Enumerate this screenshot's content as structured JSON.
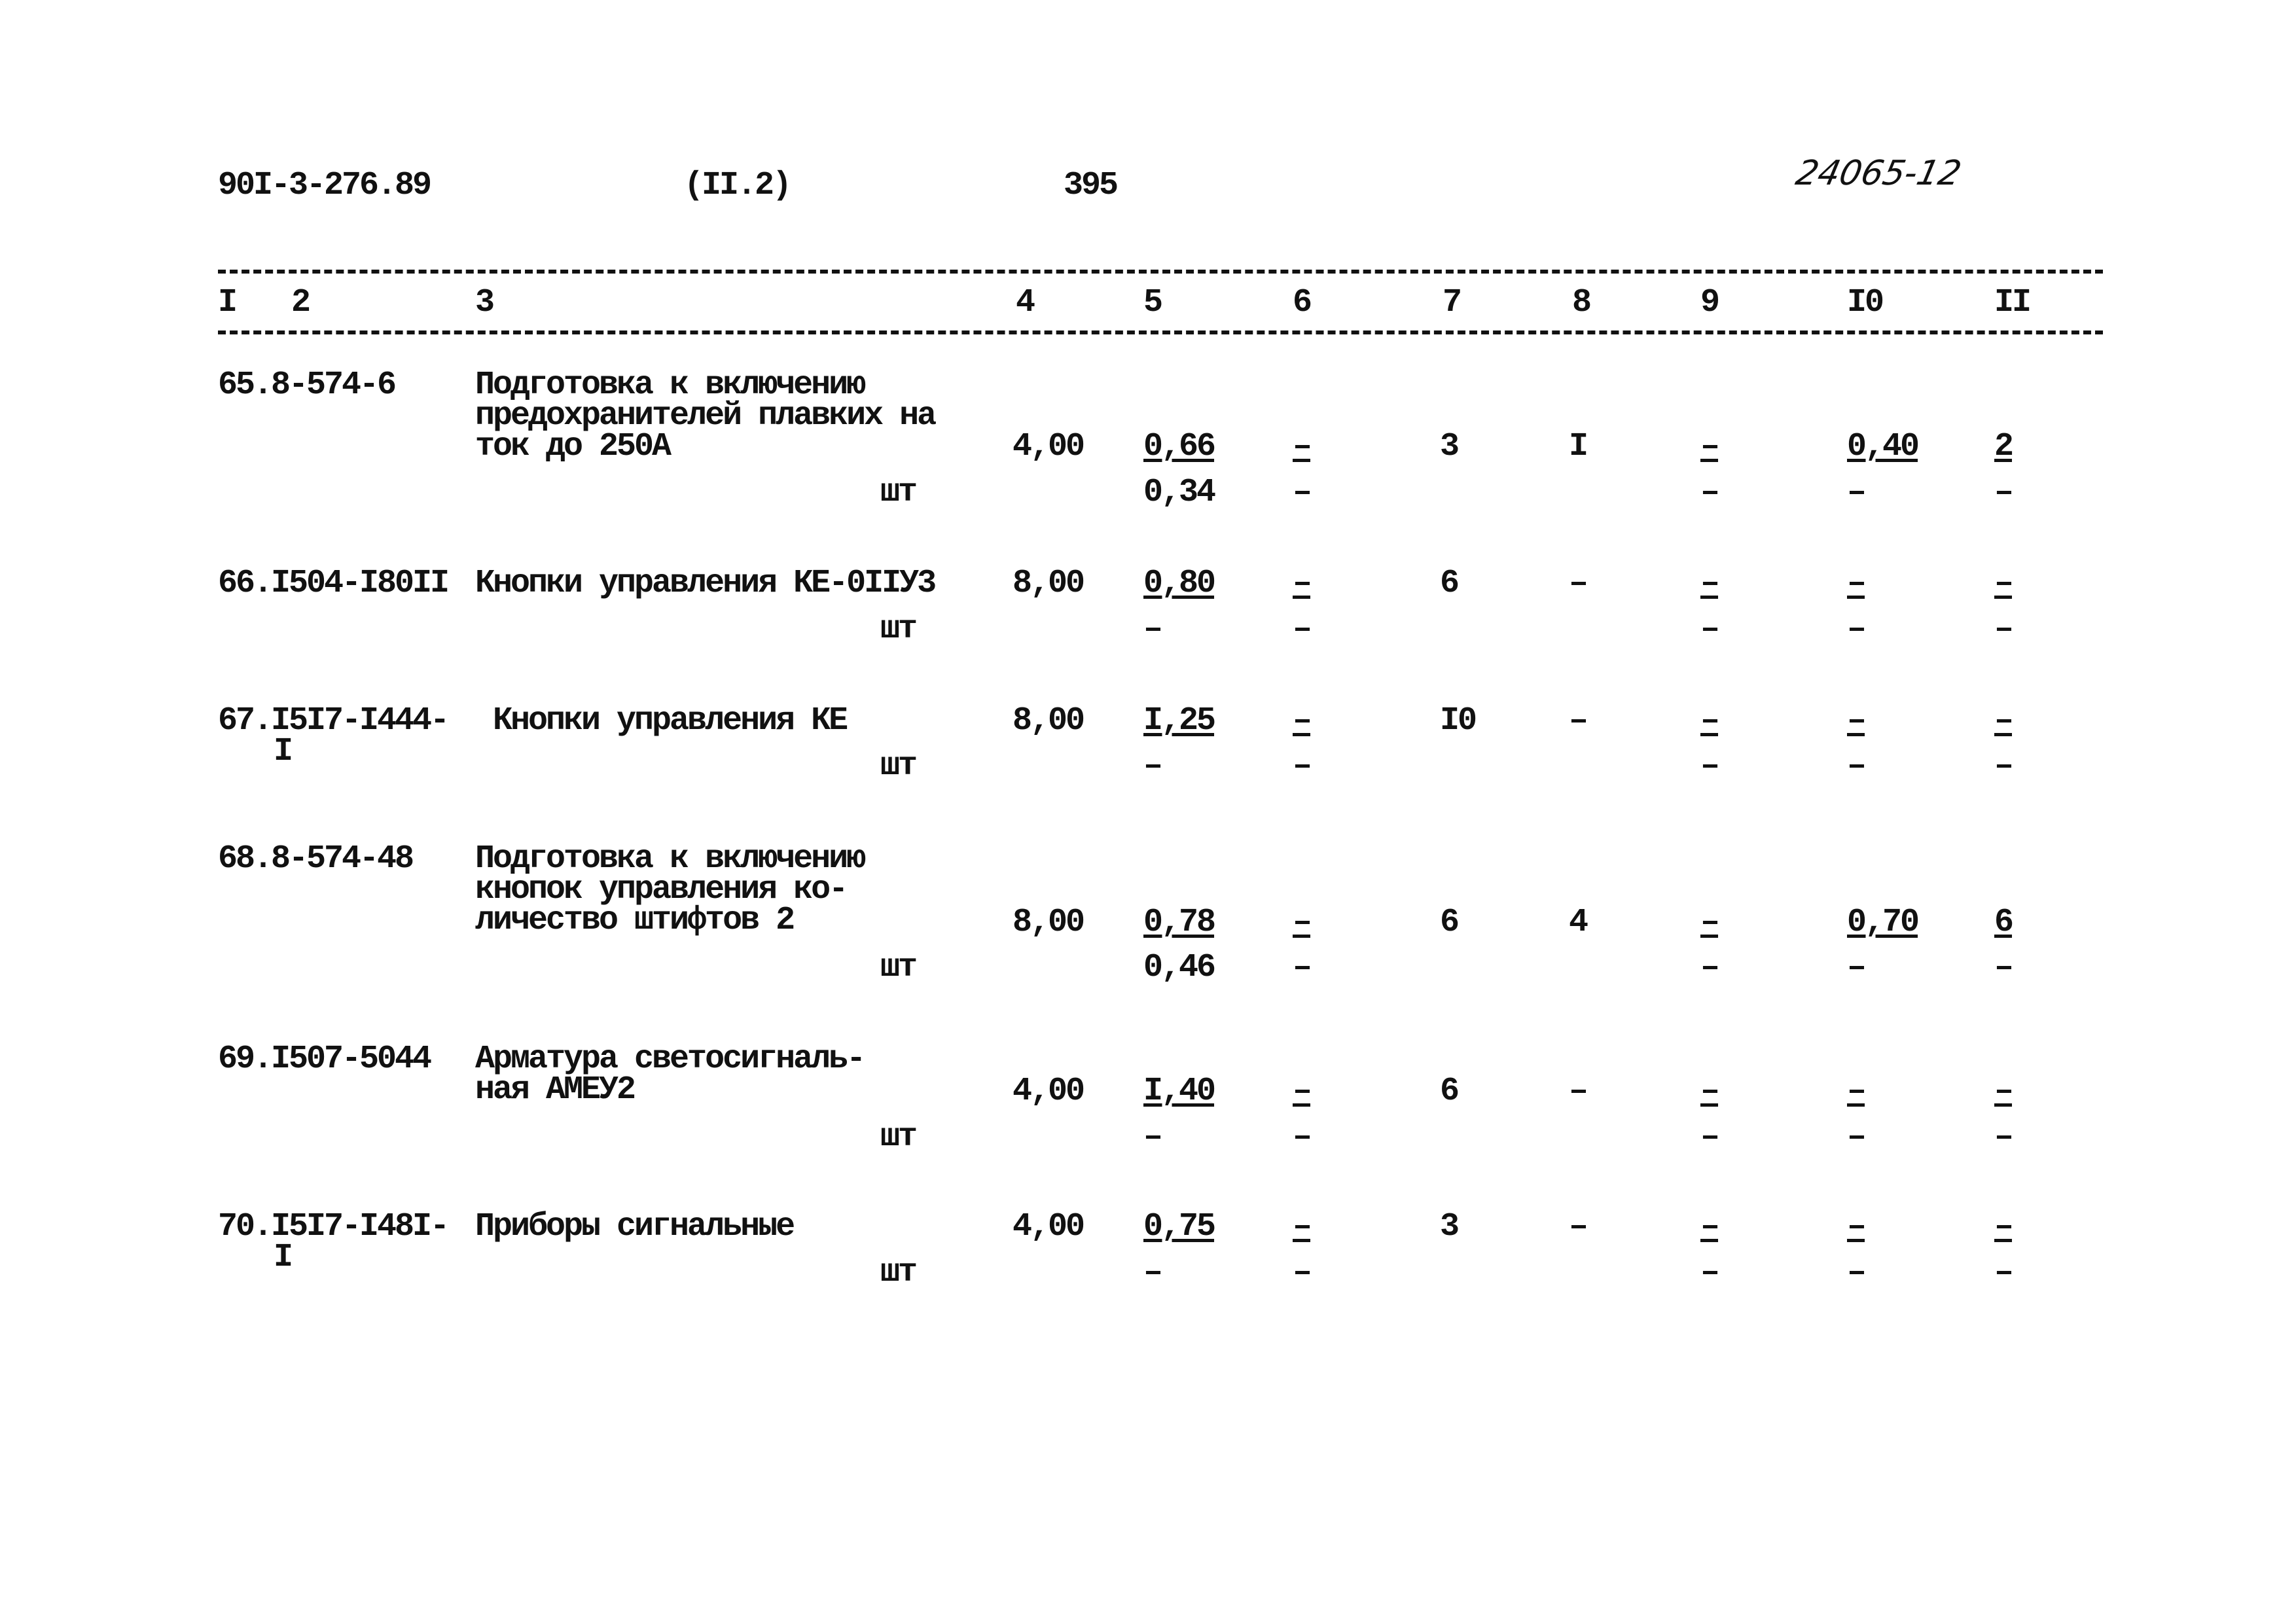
{
  "header": {
    "doc_code": "90I-3-276.89",
    "section": "(II.2)",
    "page": "395",
    "handwritten": "24065-12"
  },
  "columns": [
    "I",
    "2",
    "3",
    "4",
    "5",
    "6",
    "7",
    "8",
    "9",
    "I0",
    "II"
  ],
  "rows": [
    {
      "code": [
        "65.8-574-6"
      ],
      "desc": [
        "Подготовка к включению",
        "предохранителей плавких на",
        "ток до 250А"
      ],
      "unit": "шт",
      "c4": "4,00",
      "c5": [
        "0,66",
        "0,34"
      ],
      "c6": [
        "–",
        "–"
      ],
      "c7": "3",
      "c8": "I",
      "c9": [
        "–",
        "–"
      ],
      "c10": [
        "0,40",
        "–"
      ],
      "c11": [
        "2",
        "–"
      ]
    },
    {
      "code": [
        "66.I504-I80II"
      ],
      "desc": [
        "Кнопки управления КЕ-0IIУ3"
      ],
      "unit": "шт",
      "c4": "8,00",
      "c5": [
        "0,80",
        "–"
      ],
      "c6": [
        "–",
        "–"
      ],
      "c7": "6",
      "c8": "–",
      "c9": [
        "–",
        "–"
      ],
      "c10": [
        "–",
        "–"
      ],
      "c11": [
        "–",
        "–"
      ]
    },
    {
      "code": [
        "67.I5I7-I444-",
        "I"
      ],
      "desc": [
        " Кнопки управления КЕ"
      ],
      "unit": "шт",
      "c4": "8,00",
      "c5": [
        "I,25",
        "–"
      ],
      "c6": [
        "–",
        "–"
      ],
      "c7": "I0",
      "c8": "–",
      "c9": [
        "–",
        "–"
      ],
      "c10": [
        "–",
        "–"
      ],
      "c11": [
        "–",
        "–"
      ]
    },
    {
      "code": [
        "68.8-574-48"
      ],
      "desc": [
        "Подготовка к включению",
        "кнопок управления ко-",
        "личество штифтов 2"
      ],
      "unit": "шт",
      "c4": "8,00",
      "c5": [
        "0,78",
        "0,46"
      ],
      "c6": [
        "–",
        "–"
      ],
      "c7": "6",
      "c8": "4",
      "c9": [
        "–",
        "–"
      ],
      "c10": [
        "0,70",
        "–"
      ],
      "c11": [
        "6",
        "–"
      ]
    },
    {
      "code": [
        "69.I507-5044"
      ],
      "desc": [
        "Арматура светосигналь-",
        "ная АМЕУ2"
      ],
      "unit": "шт",
      "c4": "4,00",
      "c5": [
        "I,40",
        "–"
      ],
      "c6": [
        "–",
        "–"
      ],
      "c7": "6",
      "c8": "–",
      "c9": [
        "–",
        "–"
      ],
      "c10": [
        "–",
        "–"
      ],
      "c11": [
        "–",
        "–"
      ]
    },
    {
      "code": [
        "70.I5I7-I48I-",
        "I"
      ],
      "desc": [
        "Приборы сигнальные"
      ],
      "unit": "шт",
      "c4": "4,00",
      "c5": [
        "0,75",
        "–"
      ],
      "c6": [
        "–",
        "–"
      ],
      "c7": "3",
      "c8": "–",
      "c9": [
        "–",
        "–"
      ],
      "c10": [
        "–",
        "–"
      ],
      "c11": [
        "–",
        "–"
      ]
    }
  ]
}
